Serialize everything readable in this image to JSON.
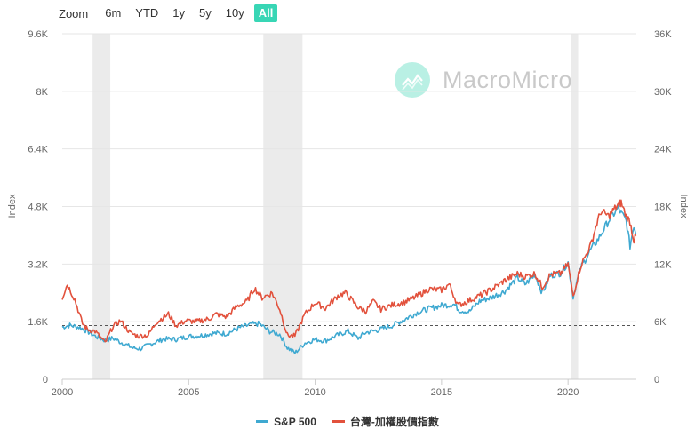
{
  "zoom": {
    "label": "Zoom",
    "buttons": [
      "6m",
      "YTD",
      "1y",
      "5y",
      "10y",
      "All"
    ],
    "active": "All"
  },
  "watermark": {
    "text": "MacroMicro"
  },
  "colors": {
    "sp500": "#3fa9d1",
    "taiex": "#e2513c",
    "accent": "#38d6b5",
    "recession": "#ebebeb"
  },
  "chart_data": {
    "type": "line",
    "left_axis": {
      "label": "Index",
      "ticks": [
        "0",
        "1.6K",
        "3.2K",
        "4.8K",
        "6.4K",
        "8K",
        "9.6K"
      ],
      "range": [
        0,
        9600
      ]
    },
    "right_axis": {
      "label": "Index",
      "ticks": [
        "0",
        "6K",
        "12K",
        "18K",
        "24K",
        "30K",
        "36K"
      ],
      "range": [
        0,
        36000
      ]
    },
    "x_axis": {
      "ticks": [
        "2000",
        "2005",
        "2010",
        "2015",
        "2020"
      ],
      "range": [
        2000,
        2022.7
      ]
    },
    "recession_bands": [
      [
        2001.2,
        2001.9
      ],
      [
        2007.95,
        2009.5
      ],
      [
        2020.1,
        2020.4
      ]
    ],
    "reference_line": {
      "axis": "right",
      "value": 5600,
      "style": "dashed"
    },
    "series": [
      {
        "name": "S&P 500",
        "axis": "left",
        "color": "#3fa9d1",
        "points": [
          [
            2000.0,
            1450
          ],
          [
            2000.3,
            1500
          ],
          [
            2000.7,
            1440
          ],
          [
            2001.0,
            1330
          ],
          [
            2001.3,
            1200
          ],
          [
            2001.7,
            1080
          ],
          [
            2002.0,
            1140
          ],
          [
            2002.4,
            1000
          ],
          [
            2002.8,
            870
          ],
          [
            2003.1,
            850
          ],
          [
            2003.5,
            980
          ],
          [
            2004.0,
            1120
          ],
          [
            2004.5,
            1110
          ],
          [
            2005.0,
            1190
          ],
          [
            2005.5,
            1220
          ],
          [
            2006.0,
            1280
          ],
          [
            2006.5,
            1270
          ],
          [
            2007.0,
            1430
          ],
          [
            2007.5,
            1530
          ],
          [
            2007.8,
            1540
          ],
          [
            2008.2,
            1330
          ],
          [
            2008.6,
            1250
          ],
          [
            2008.9,
            880
          ],
          [
            2009.2,
            730
          ],
          [
            2009.6,
            1010
          ],
          [
            2010.0,
            1110
          ],
          [
            2010.4,
            1070
          ],
          [
            2010.8,
            1200
          ],
          [
            2011.3,
            1340
          ],
          [
            2011.7,
            1140
          ],
          [
            2012.0,
            1300
          ],
          [
            2012.5,
            1370
          ],
          [
            2013.0,
            1480
          ],
          [
            2013.5,
            1650
          ],
          [
            2014.0,
            1840
          ],
          [
            2014.5,
            1960
          ],
          [
            2015.0,
            2050
          ],
          [
            2015.5,
            2080
          ],
          [
            2015.7,
            1920
          ],
          [
            2016.1,
            1880
          ],
          [
            2016.5,
            2170
          ],
          [
            2017.0,
            2280
          ],
          [
            2017.5,
            2450
          ],
          [
            2018.0,
            2820
          ],
          [
            2018.3,
            2640
          ],
          [
            2018.7,
            2900
          ],
          [
            2018.98,
            2400
          ],
          [
            2019.3,
            2880
          ],
          [
            2019.7,
            2950
          ],
          [
            2020.0,
            3250
          ],
          [
            2020.2,
            2300
          ],
          [
            2020.5,
            3100
          ],
          [
            2020.9,
            3600
          ],
          [
            2021.2,
            3900
          ],
          [
            2021.6,
            4400
          ],
          [
            2021.98,
            4760
          ],
          [
            2022.3,
            4400
          ],
          [
            2022.45,
            3700
          ],
          [
            2022.6,
            4280
          ],
          [
            2022.7,
            4050
          ]
        ]
      },
      {
        "name": "台灣-加權股價指數",
        "axis": "right",
        "color": "#e2513c",
        "points": [
          [
            2000.0,
            8500
          ],
          [
            2000.2,
            9900
          ],
          [
            2000.5,
            8300
          ],
          [
            2000.8,
            5800
          ],
          [
            2001.0,
            5200
          ],
          [
            2001.3,
            5000
          ],
          [
            2001.7,
            3800
          ],
          [
            2002.0,
            5500
          ],
          [
            2002.3,
            6100
          ],
          [
            2002.7,
            4800
          ],
          [
            2003.0,
            4500
          ],
          [
            2003.4,
            4600
          ],
          [
            2003.7,
            5900
          ],
          [
            2004.2,
            6800
          ],
          [
            2004.5,
            5600
          ],
          [
            2004.9,
            6100
          ],
          [
            2005.3,
            6000
          ],
          [
            2005.8,
            6300
          ],
          [
            2006.1,
            6800
          ],
          [
            2006.5,
            6500
          ],
          [
            2006.9,
            7600
          ],
          [
            2007.3,
            8100
          ],
          [
            2007.6,
            9500
          ],
          [
            2007.9,
            8500
          ],
          [
            2008.3,
            9000
          ],
          [
            2008.6,
            7300
          ],
          [
            2008.9,
            4600
          ],
          [
            2009.2,
            4500
          ],
          [
            2009.6,
            6800
          ],
          [
            2010.0,
            8000
          ],
          [
            2010.4,
            7400
          ],
          [
            2010.9,
            8700
          ],
          [
            2011.2,
            9000
          ],
          [
            2011.7,
            7500
          ],
          [
            2012.0,
            7100
          ],
          [
            2012.3,
            8100
          ],
          [
            2012.6,
            7300
          ],
          [
            2013.0,
            7700
          ],
          [
            2013.5,
            8000
          ],
          [
            2014.0,
            8600
          ],
          [
            2014.5,
            9400
          ],
          [
            2015.0,
            9300
          ],
          [
            2015.3,
            9900
          ],
          [
            2015.65,
            7700
          ],
          [
            2016.0,
            8100
          ],
          [
            2016.5,
            8700
          ],
          [
            2017.0,
            9400
          ],
          [
            2017.5,
            10300
          ],
          [
            2018.0,
            11000
          ],
          [
            2018.3,
            10700
          ],
          [
            2018.7,
            11000
          ],
          [
            2018.98,
            9600
          ],
          [
            2019.3,
            10900
          ],
          [
            2019.7,
            11000
          ],
          [
            2020.0,
            12000
          ],
          [
            2020.2,
            8700
          ],
          [
            2020.5,
            11800
          ],
          [
            2020.9,
            14000
          ],
          [
            2021.1,
            15900
          ],
          [
            2021.3,
            17500
          ],
          [
            2021.6,
            17000
          ],
          [
            2021.98,
            18200
          ],
          [
            2022.1,
            18400
          ],
          [
            2022.3,
            17000
          ],
          [
            2022.45,
            16400
          ],
          [
            2022.6,
            14500
          ],
          [
            2022.7,
            15000
          ]
        ]
      }
    ],
    "legend_position": "bottom-center",
    "grid": true
  }
}
